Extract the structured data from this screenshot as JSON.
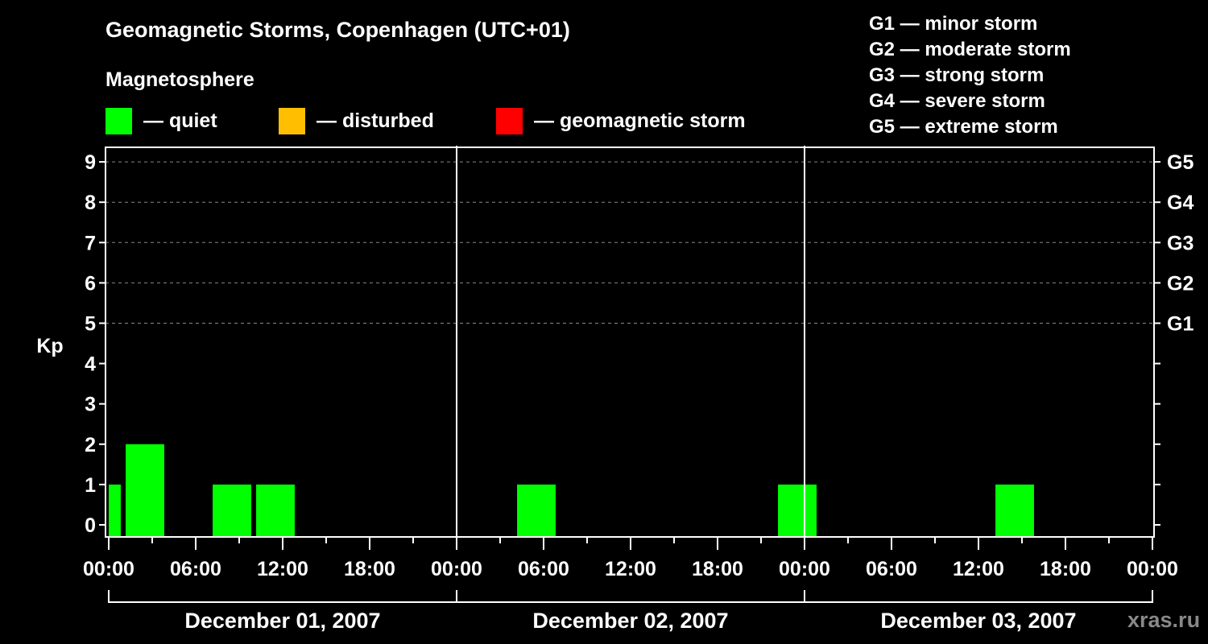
{
  "header": {
    "title": "Geomagnetic Storms, Copenhagen (UTC+01)",
    "subtitle": "Magnetosphere"
  },
  "legend": [
    {
      "label": "— quiet",
      "color": "#00ff00"
    },
    {
      "label": "— disturbed",
      "color": "#ffbf00"
    },
    {
      "label": "— geomagnetic storm",
      "color": "#ff0000"
    }
  ],
  "storm_scale": [
    "G1 — minor storm",
    "G2 — moderate storm",
    "G3 — strong storm",
    "G4 — severe storm",
    "G5 — extreme storm"
  ],
  "watermark": "xras.ru",
  "chart_data": {
    "type": "bar",
    "title": "Geomagnetic Storms, Copenhagen (UTC+01)",
    "xlabel": "",
    "ylabel": "Kp",
    "ylim": [
      0,
      9
    ],
    "yticks": [
      0,
      1,
      2,
      3,
      4,
      5,
      6,
      7,
      8,
      9
    ],
    "right_ticks": [
      {
        "kp": 5,
        "label": "G1"
      },
      {
        "kp": 6,
        "label": "G2"
      },
      {
        "kp": 7,
        "label": "G3"
      },
      {
        "kp": 8,
        "label": "G4"
      },
      {
        "kp": 9,
        "label": "G5"
      }
    ],
    "x_tick_labels": [
      "00:00",
      "06:00",
      "12:00",
      "18:00",
      "00:00",
      "06:00",
      "12:00",
      "18:00",
      "00:00",
      "06:00",
      "12:00",
      "18:00",
      "00:00"
    ],
    "days": [
      "December 01, 2007",
      "December 02, 2007",
      "December 03, 2007"
    ],
    "grid": true,
    "bars": [
      {
        "start_h": 0.0,
        "end_h": 0.83,
        "kp": 1,
        "level": "quiet"
      },
      {
        "start_h": 1.17,
        "end_h": 3.83,
        "kp": 2,
        "level": "quiet"
      },
      {
        "start_h": 7.17,
        "end_h": 9.83,
        "kp": 1,
        "level": "quiet"
      },
      {
        "start_h": 10.17,
        "end_h": 12.83,
        "kp": 1,
        "level": "quiet"
      },
      {
        "start_h": 28.17,
        "end_h": 30.83,
        "kp": 1,
        "level": "quiet"
      },
      {
        "start_h": 46.17,
        "end_h": 48.83,
        "kp": 1,
        "level": "quiet"
      },
      {
        "start_h": 61.17,
        "end_h": 63.83,
        "kp": 1,
        "level": "quiet"
      }
    ],
    "colors": {
      "quiet": "#00ff00",
      "disturbed": "#ffbf00",
      "storm": "#ff0000"
    }
  }
}
